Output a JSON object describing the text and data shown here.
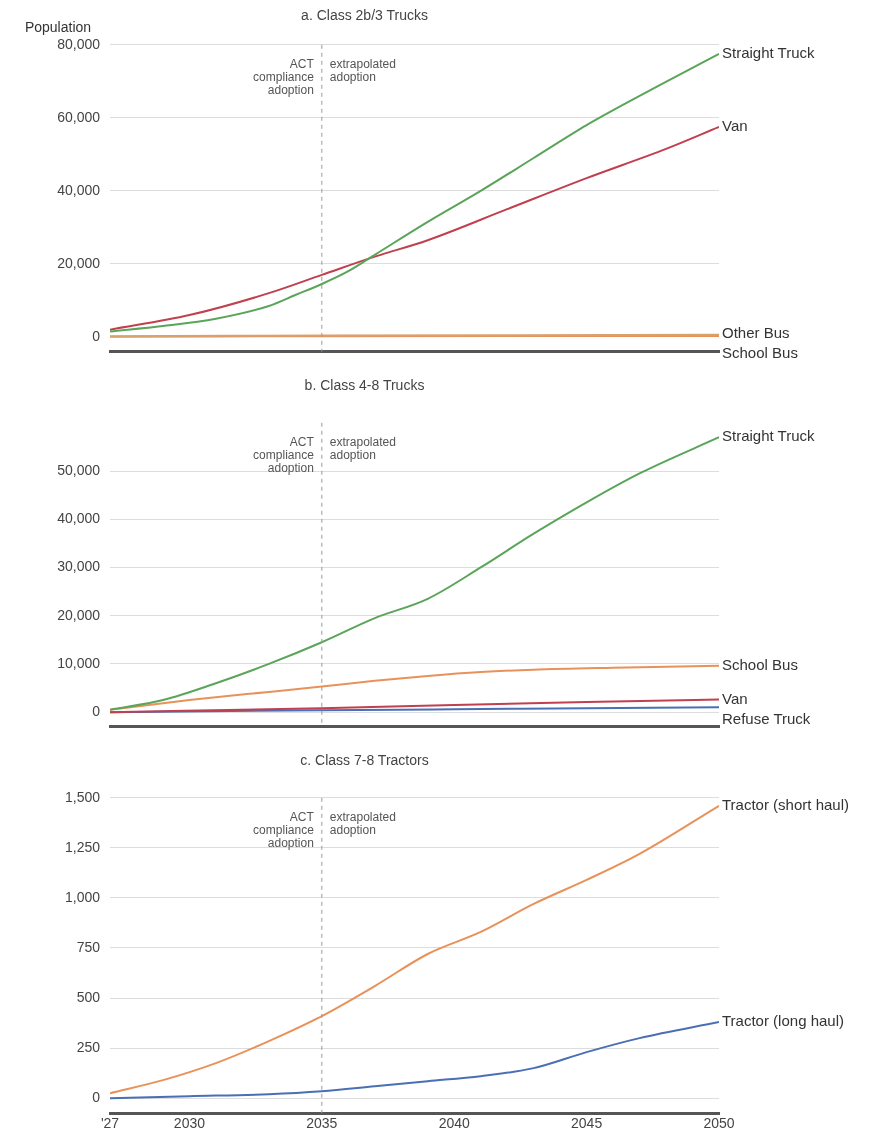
{
  "chart_data": [
    {
      "type": "line",
      "title": "a. Class 2b/3 Trucks",
      "ylabel": "Population",
      "xlim": [
        2027,
        2050
      ],
      "ylim": [
        -4000,
        80000
      ],
      "yticks": [
        0,
        {
          "value": 20000,
          "label": "20,000"
        },
        {
          "value": 40000,
          "label": "40,000"
        },
        {
          "value": 60000,
          "label": "60,000"
        },
        {
          "value": 80000,
          "label": "80,000"
        }
      ],
      "tick_labels": "y",
      "grid": "y",
      "legend": false,
      "marker": "none",
      "line_style": "solid",
      "ref_lines": [
        {
          "axis": "x",
          "value": 2035,
          "color": "#999999",
          "line_style": "dashed"
        }
      ],
      "annotations": [
        "ACT compliance adoption",
        "extrapolated adoption"
      ],
      "series": [
        {
          "name": "Straight Truck",
          "color": "#5aa55a",
          "x": [
            2027,
            2029,
            2031,
            2033,
            2034,
            2035,
            2036,
            2037,
            2039,
            2041,
            2043,
            2045,
            2047,
            2050
          ],
          "values": [
            1500,
            3000,
            5000,
            8500,
            11500,
            14500,
            18000,
            22500,
            31500,
            40000,
            49000,
            58000,
            66000,
            77500
          ]
        },
        {
          "name": "Van",
          "color": "#c0404f",
          "x": [
            2027,
            2030,
            2033,
            2035,
            2037,
            2039,
            2042,
            2045,
            2048,
            2050
          ],
          "values": [
            2000,
            6000,
            12000,
            17000,
            22000,
            26500,
            35000,
            43500,
            51500,
            57500
          ]
        },
        {
          "name": "Other Bus",
          "color": "#d9a070",
          "x": [
            2027,
            2035,
            2050
          ],
          "values": [
            200,
            400,
            600
          ]
        },
        {
          "name": "School Bus",
          "color": "#e8925a",
          "x": [
            2027,
            2035,
            2050
          ],
          "values": [
            100,
            200,
            300
          ]
        }
      ]
    },
    {
      "type": "line",
      "title": "b. Class 4-8 Trucks",
      "xlim": [
        2027,
        2050
      ],
      "ylim": [
        -3000,
        60000
      ],
      "yticks": [
        0,
        {
          "value": 10000,
          "label": "10,000"
        },
        {
          "value": 20000,
          "label": "20,000"
        },
        {
          "value": 30000,
          "label": "30,000"
        },
        {
          "value": 40000,
          "label": "40,000"
        },
        {
          "value": 50000,
          "label": "50,000"
        }
      ],
      "tick_labels": "y",
      "grid": "y",
      "legend": false,
      "marker": "none",
      "line_style": "solid",
      "ref_lines": [
        {
          "axis": "x",
          "value": 2035,
          "color": "#999999",
          "line_style": "dashed"
        }
      ],
      "annotations": [
        "ACT compliance adoption",
        "extrapolated adoption"
      ],
      "series": [
        {
          "name": "Straight Truck",
          "color": "#5aa55a",
          "x": [
            2027,
            2029,
            2031,
            2033,
            2035,
            2037,
            2039,
            2041,
            2043,
            2045,
            2047,
            2050
          ],
          "values": [
            500,
            2500,
            6000,
            10000,
            14500,
            19500,
            23500,
            30000,
            37000,
            43500,
            49500,
            57000
          ]
        },
        {
          "name": "School Bus",
          "color": "#e8925a",
          "x": [
            2027,
            2030,
            2033,
            2035,
            2037,
            2039,
            2041,
            2043,
            2046,
            2050
          ],
          "values": [
            500,
            2500,
            4200,
            5300,
            6500,
            7500,
            8300,
            8800,
            9200,
            9600
          ]
        },
        {
          "name": "Van",
          "color": "#c0404f",
          "x": [
            2027,
            2035,
            2040,
            2045,
            2050
          ],
          "values": [
            0,
            800,
            1500,
            2100,
            2600
          ]
        },
        {
          "name": "Refuse Truck",
          "color": "#4a6fb5",
          "x": [
            2027,
            2035,
            2040,
            2045,
            2050
          ],
          "values": [
            0,
            400,
            600,
            800,
            1000
          ]
        }
      ]
    },
    {
      "type": "line",
      "title": "c. Class 7-8 Tractors",
      "xlim": [
        2027,
        2050
      ],
      "xticks": [
        {
          "value": 2027,
          "label": "'27"
        },
        2030,
        2035,
        2040,
        2045,
        2050
      ],
      "ylim": [
        -75,
        1500
      ],
      "yticks": [
        0,
        250,
        500,
        750,
        {
          "value": 1000,
          "label": "1,000"
        },
        {
          "value": 1250,
          "label": "1,250"
        },
        {
          "value": 1500,
          "label": "1,500"
        }
      ],
      "grid": "y",
      "legend": false,
      "marker": "none",
      "line_style": "solid",
      "ref_lines": [
        {
          "axis": "x",
          "value": 2035,
          "color": "#999999",
          "line_style": "dashed"
        }
      ],
      "annotations": [
        "ACT compliance adoption",
        "extrapolated adoption"
      ],
      "series": [
        {
          "name": "Tractor (short haul)",
          "color": "#e8925a",
          "x": [
            2027,
            2029,
            2031,
            2033,
            2035,
            2037,
            2039,
            2041,
            2043,
            2045,
            2047,
            2050
          ],
          "values": [
            25,
            90,
            175,
            285,
            410,
            560,
            720,
            830,
            970,
            1090,
            1220,
            1460
          ]
        },
        {
          "name": "Tractor (long haul)",
          "color": "#4a6fb5",
          "x": [
            2027,
            2030,
            2033,
            2035,
            2037,
            2039,
            2041,
            2043,
            2045,
            2047,
            2050
          ],
          "values": [
            0,
            10,
            20,
            35,
            60,
            85,
            110,
            150,
            230,
            300,
            380
          ]
        }
      ]
    }
  ]
}
